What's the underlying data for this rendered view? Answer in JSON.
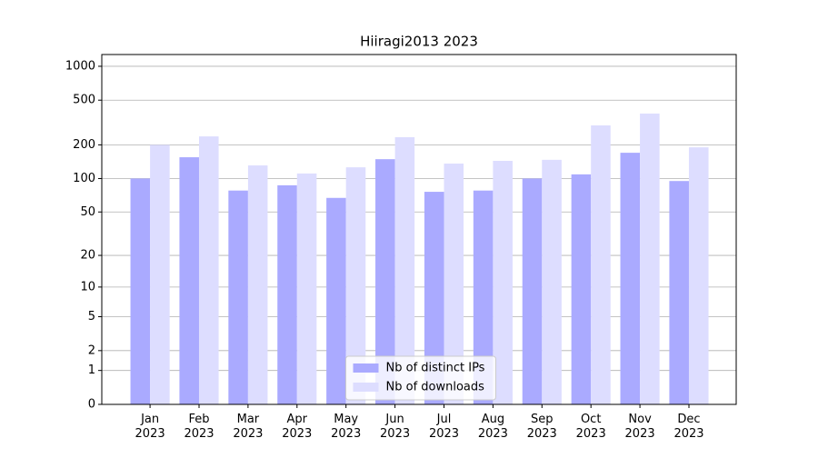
{
  "chart_data": {
    "type": "bar",
    "title": "Hiiragi2013 2023",
    "categories": [
      "Jan\n2023",
      "Feb\n2023",
      "Mar\n2023",
      "Apr\n2023",
      "May\n2023",
      "Jun\n2023",
      "Jul\n2023",
      "Aug\n2023",
      "Sep\n2023",
      "Oct\n2023",
      "Nov\n2023",
      "Dec\n2023"
    ],
    "series": [
      {
        "name": "Nb of distinct IPs",
        "color": "#aaaaff",
        "values": [
          100,
          155,
          78,
          87,
          67,
          149,
          76,
          78,
          100,
          109,
          170,
          95
        ]
      },
      {
        "name": "Nb of downloads",
        "color": "#ddddff",
        "values": [
          200,
          238,
          131,
          111,
          126,
          234,
          136,
          144,
          147,
          298,
          380,
          190
        ]
      }
    ],
    "yscale": "log1p",
    "ylim": [
      0,
      1272
    ],
    "yticks": [
      0,
      1,
      2,
      5,
      10,
      20,
      50,
      100,
      200,
      500,
      1000
    ],
    "grid": true,
    "legend": "lower center"
  }
}
